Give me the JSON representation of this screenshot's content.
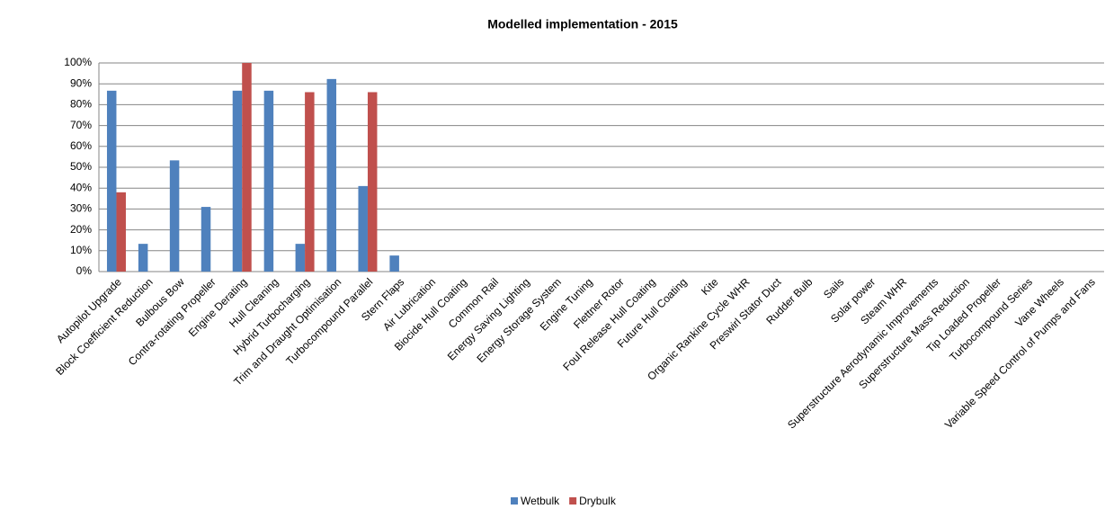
{
  "chart_data": {
    "type": "bar",
    "title": "Modelled implementation - 2015",
    "categories": [
      "Autopilot Upgrade",
      "Block Coefficient Reduction",
      "Bulbous Bow",
      "Contra-rotating Propeller",
      "Engine Derating",
      "Hull Cleaning",
      "Hybrid Turbocharging",
      "Trim and Draught Optimisation",
      "Turbocompound Parallel",
      "Stern Flaps",
      "Air Lubrication",
      "Biocide Hull Coating",
      "Common Rail",
      "Energy Saving Lighting",
      "Energy Storage System",
      "Engine Tuning",
      "Flettner Rotor",
      "Foul Release Hull Coating",
      "Future Hull Coating",
      "Kite",
      "Organic Rankine Cycle WHR",
      "Preswirl Stator Duct",
      "Rudder Bulb",
      "Sails",
      "Solar power",
      "Steam WHR",
      "Superstructure Aerodynamic Improvements",
      "Superstructure Mass Reduction",
      "Tip Loaded Propeller",
      "Turbocompound Series",
      "Vane Wheels",
      "Variable Speed Control of Pumps and Fans"
    ],
    "series": [
      {
        "name": "Wetbulk",
        "color": "#4f81bd",
        "values": [
          86.7,
          13.3,
          53.3,
          31,
          86.7,
          86.7,
          13.3,
          92.3,
          41,
          7.7,
          0,
          0,
          0,
          0,
          0,
          0,
          0,
          0,
          0,
          0,
          0,
          0,
          0,
          0,
          0,
          0,
          0,
          0,
          0,
          0,
          0,
          0
        ]
      },
      {
        "name": "Drybulk",
        "color": "#c0504d",
        "values": [
          38,
          0,
          0,
          0,
          100,
          0,
          86,
          0,
          86,
          0,
          0,
          0,
          0,
          0,
          0,
          0,
          0,
          0,
          0,
          0,
          0,
          0,
          0,
          0,
          0,
          0,
          0,
          0,
          0,
          0,
          0,
          0
        ]
      }
    ],
    "ylim": [
      0,
      100
    ],
    "yticks": [
      {
        "value": 0,
        "label": "0%"
      },
      {
        "value": 10,
        "label": "10%"
      },
      {
        "value": 20,
        "label": "20%"
      },
      {
        "value": 30,
        "label": "30%"
      },
      {
        "value": 40,
        "label": "40%"
      },
      {
        "value": 50,
        "label": "50%"
      },
      {
        "value": 60,
        "label": "60%"
      },
      {
        "value": 70,
        "label": "70%"
      },
      {
        "value": 80,
        "label": "80%"
      },
      {
        "value": 90,
        "label": "90%"
      },
      {
        "value": 100,
        "label": "100%"
      }
    ],
    "grid": true,
    "legend": "bottom"
  }
}
